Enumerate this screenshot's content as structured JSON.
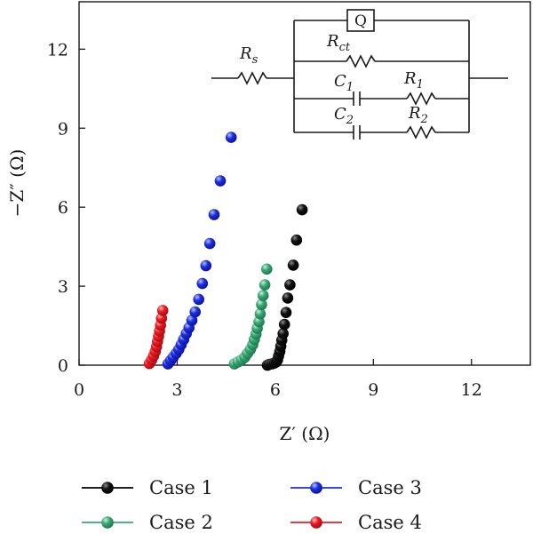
{
  "chart_data": {
    "type": "scatter",
    "xlabel": "Z′ (Ω)",
    "ylabel": "−Z″ (Ω)",
    "xlim": [
      0,
      13.8
    ],
    "ylim": [
      0,
      13.8
    ],
    "x_ticks": [
      0,
      3,
      6,
      9,
      12
    ],
    "y_ticks": [
      0,
      3,
      6,
      9,
      12
    ],
    "x_tick_labels": [
      "0",
      "3",
      "6",
      "9",
      "12"
    ],
    "y_tick_labels": [
      "0",
      "3",
      "6",
      "9",
      "12"
    ],
    "grid": false,
    "legend_position": "bottom",
    "series": [
      {
        "name": "Case 1",
        "color": "#000000",
        "points": [
          [
            5.76,
            0.0
          ],
          [
            5.82,
            0.03
          ],
          [
            5.9,
            0.05
          ],
          [
            5.98,
            0.08
          ],
          [
            6.03,
            0.12
          ],
          [
            6.07,
            0.2
          ],
          [
            6.1,
            0.35
          ],
          [
            6.14,
            0.52
          ],
          [
            6.17,
            0.72
          ],
          [
            6.2,
            0.95
          ],
          [
            6.24,
            1.2
          ],
          [
            6.28,
            1.55
          ],
          [
            6.33,
            2.0
          ],
          [
            6.38,
            2.55
          ],
          [
            6.45,
            3.05
          ],
          [
            6.55,
            3.8
          ],
          [
            6.65,
            4.75
          ],
          [
            6.82,
            5.9
          ]
        ]
      },
      {
        "name": "Case 2",
        "color": "#3aa876",
        "points": [
          [
            4.75,
            0.05
          ],
          [
            4.86,
            0.12
          ],
          [
            4.97,
            0.2
          ],
          [
            5.07,
            0.3
          ],
          [
            5.15,
            0.45
          ],
          [
            5.24,
            0.6
          ],
          [
            5.31,
            0.78
          ],
          [
            5.36,
            0.98
          ],
          [
            5.41,
            1.18
          ],
          [
            5.45,
            1.4
          ],
          [
            5.5,
            1.65
          ],
          [
            5.54,
            1.95
          ],
          [
            5.58,
            2.3
          ],
          [
            5.63,
            2.65
          ],
          [
            5.68,
            3.05
          ],
          [
            5.74,
            3.65
          ]
        ]
      },
      {
        "name": "Case 3",
        "color": "#1f2fe0",
        "points": [
          [
            2.72,
            0.05
          ],
          [
            2.8,
            0.18
          ],
          [
            2.88,
            0.3
          ],
          [
            2.97,
            0.45
          ],
          [
            3.05,
            0.6
          ],
          [
            3.12,
            0.78
          ],
          [
            3.2,
            0.98
          ],
          [
            3.28,
            1.2
          ],
          [
            3.36,
            1.42
          ],
          [
            3.45,
            1.7
          ],
          [
            3.55,
            2.02
          ],
          [
            3.66,
            2.5
          ],
          [
            3.77,
            3.1
          ],
          [
            3.88,
            3.78
          ],
          [
            4.0,
            4.62
          ],
          [
            4.13,
            5.72
          ],
          [
            4.32,
            7.0
          ],
          [
            4.65,
            8.65
          ]
        ]
      },
      {
        "name": "Case 4",
        "color": "#ec1c24",
        "points": [
          [
            2.15,
            0.06
          ],
          [
            2.22,
            0.2
          ],
          [
            2.28,
            0.35
          ],
          [
            2.33,
            0.52
          ],
          [
            2.37,
            0.7
          ],
          [
            2.4,
            0.9
          ],
          [
            2.43,
            1.1
          ],
          [
            2.46,
            1.3
          ],
          [
            2.49,
            1.52
          ],
          [
            2.52,
            1.78
          ],
          [
            2.56,
            2.08
          ]
        ]
      }
    ],
    "legend": [
      {
        "label": "Case 1",
        "color": "#000000"
      },
      {
        "label": "Case 3",
        "color": "#1f2fe0"
      },
      {
        "label": "Case 2",
        "color": "#3aa876"
      },
      {
        "label": "Case 4",
        "color": "#ec1c24"
      }
    ]
  },
  "circuit": {
    "q_label": "Q",
    "rs": {
      "main": "R",
      "sub": "s"
    },
    "rct": {
      "main": "R",
      "sub": "ct"
    },
    "c1": {
      "main": "C",
      "sub": "1"
    },
    "r1": {
      "main": "R",
      "sub": "1"
    },
    "c2": {
      "main": "C",
      "sub": "2"
    },
    "r2": {
      "main": "R",
      "sub": "2"
    }
  }
}
